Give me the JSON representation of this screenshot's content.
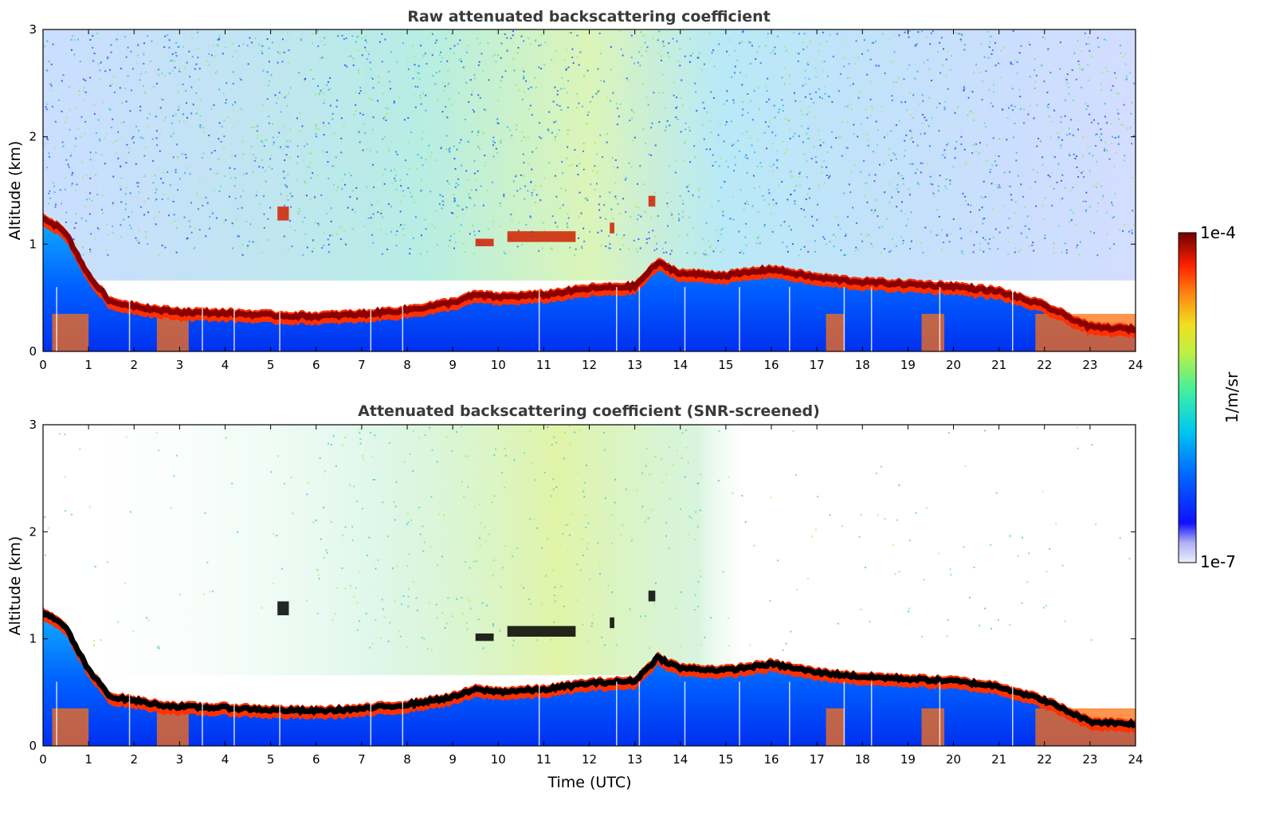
{
  "chart_data": [
    {
      "type": "heatmap",
      "title": "Raw attenuated backscattering coefficient",
      "xlabel": "",
      "ylabel": "Altitude (km)",
      "xlim": [
        0,
        24
      ],
      "ylim": [
        0,
        3
      ],
      "x_ticks": [
        "0",
        "1",
        "2",
        "3",
        "4",
        "5",
        "6",
        "7",
        "8",
        "9",
        "10",
        "11",
        "12",
        "13",
        "14",
        "15",
        "16",
        "17",
        "18",
        "19",
        "20",
        "21",
        "22",
        "23",
        "24"
      ],
      "y_ticks": [
        "0",
        "1",
        "2",
        "3"
      ],
      "layer_top_km": [
        [
          0,
          1.25
        ],
        [
          0.5,
          1.1
        ],
        [
          1,
          0.7
        ],
        [
          1.5,
          0.45
        ],
        [
          2,
          0.42
        ],
        [
          2.5,
          0.38
        ],
        [
          3,
          0.36
        ],
        [
          4,
          0.35
        ],
        [
          5,
          0.33
        ],
        [
          6,
          0.32
        ],
        [
          7,
          0.34
        ],
        [
          8,
          0.38
        ],
        [
          9,
          0.45
        ],
        [
          9.5,
          0.52
        ],
        [
          10,
          0.5
        ],
        [
          11,
          0.52
        ],
        [
          12,
          0.58
        ],
        [
          13,
          0.6
        ],
        [
          13.5,
          0.82
        ],
        [
          14,
          0.72
        ],
        [
          15,
          0.7
        ],
        [
          16,
          0.76
        ],
        [
          17,
          0.68
        ],
        [
          18,
          0.64
        ],
        [
          19,
          0.62
        ],
        [
          20,
          0.6
        ],
        [
          21,
          0.55
        ],
        [
          22,
          0.42
        ],
        [
          23,
          0.22
        ],
        [
          24,
          0.2
        ]
      ]
    },
    {
      "type": "heatmap",
      "title": "Attenuated backscattering coefficient (SNR-screened)",
      "xlabel": "Time (UTC)",
      "ylabel": "Altitude (km)",
      "xlim": [
        0,
        24
      ],
      "ylim": [
        0,
        3
      ],
      "x_ticks": [
        "0",
        "1",
        "2",
        "3",
        "4",
        "5",
        "6",
        "7",
        "8",
        "9",
        "10",
        "11",
        "12",
        "13",
        "14",
        "15",
        "16",
        "17",
        "18",
        "19",
        "20",
        "21",
        "22",
        "23",
        "24"
      ],
      "y_ticks": [
        "0",
        "1",
        "2",
        "3"
      ],
      "layer_top_km": [
        [
          0,
          1.25
        ],
        [
          0.5,
          1.1
        ],
        [
          1,
          0.7
        ],
        [
          1.5,
          0.45
        ],
        [
          2,
          0.42
        ],
        [
          2.5,
          0.38
        ],
        [
          3,
          0.36
        ],
        [
          4,
          0.35
        ],
        [
          5,
          0.33
        ],
        [
          6,
          0.32
        ],
        [
          7,
          0.34
        ],
        [
          8,
          0.38
        ],
        [
          9,
          0.45
        ],
        [
          9.5,
          0.52
        ],
        [
          10,
          0.5
        ],
        [
          11,
          0.52
        ],
        [
          12,
          0.58
        ],
        [
          13,
          0.6
        ],
        [
          13.5,
          0.82
        ],
        [
          14,
          0.72
        ],
        [
          15,
          0.7
        ],
        [
          16,
          0.76
        ],
        [
          17,
          0.68
        ],
        [
          18,
          0.64
        ],
        [
          19,
          0.62
        ],
        [
          20,
          0.6
        ],
        [
          21,
          0.55
        ],
        [
          22,
          0.42
        ],
        [
          23,
          0.22
        ],
        [
          24,
          0.2
        ]
      ]
    }
  ],
  "colorbar": {
    "max_label": "1e-4",
    "min_label": "1e-7",
    "unit_label": "1/m/sr",
    "colors": [
      "#eeeefc",
      "#c8c8f4",
      "#9c9cf0",
      "#2020ff",
      "#0040ff",
      "#0090ff",
      "#00c8f0",
      "#20e0c0",
      "#70f070",
      "#c0f040",
      "#f0e020",
      "#ffa010",
      "#ff5010",
      "#e01000",
      "#a00000",
      "#700000"
    ]
  }
}
